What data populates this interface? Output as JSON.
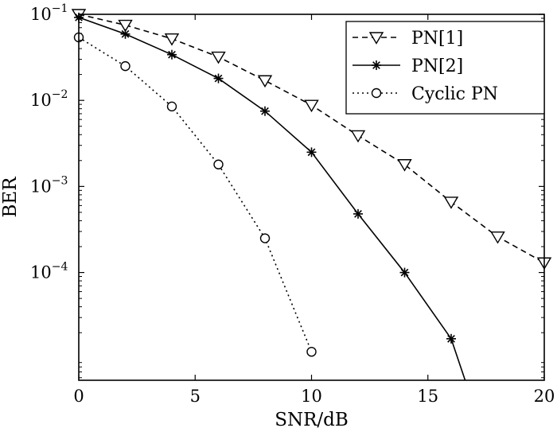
{
  "chart_data": {
    "type": "line",
    "xlabel": "SNR/dB",
    "ylabel": "BER",
    "xlim": [
      0,
      20
    ],
    "ylim": [
      5.6e-06,
      0.1
    ],
    "yscale": "log",
    "grid": false,
    "legend_position": "top-right",
    "x_ticks": [
      0,
      5,
      10,
      15,
      20
    ],
    "x_tick_labels": [
      "0",
      "5",
      "10",
      "15",
      "20"
    ],
    "y_ticks": [
      {
        "value": 0.1,
        "base": "10",
        "exponent": "−1"
      },
      {
        "value": 0.01,
        "base": "10",
        "exponent": "−2"
      },
      {
        "value": 0.001,
        "base": "10",
        "exponent": "−3"
      },
      {
        "value": 0.0001,
        "base": "10",
        "exponent": "−4"
      }
    ],
    "series": [
      {
        "name": "PN[1]",
        "line_style": "dashed",
        "marker": "triangle-down",
        "color": "#000000",
        "x": [
          0,
          2,
          4,
          6,
          8,
          10,
          12,
          14,
          16,
          18,
          20
        ],
        "y": [
          0.1,
          0.075,
          0.052,
          0.032,
          0.017,
          0.0088,
          0.0039,
          0.0018,
          0.00066,
          0.00026,
          0.00013
        ]
      },
      {
        "name": "PN[2]",
        "line_style": "solid",
        "marker": "star",
        "color": "#000000",
        "x": [
          0,
          2,
          4,
          6,
          8,
          10,
          12,
          14,
          16,
          16.6
        ],
        "y": [
          0.092,
          0.059,
          0.034,
          0.018,
          0.0075,
          0.0025,
          0.00048,
          0.0001,
          1.7e-05,
          5.6e-06
        ],
        "marker_count": 9
      },
      {
        "name": "Cyclic PN",
        "line_style": "dotted",
        "marker": "circle",
        "color": "#000000",
        "x": [
          0,
          2,
          4,
          6,
          8,
          10
        ],
        "y": [
          0.054,
          0.025,
          0.0085,
          0.0018,
          0.00025,
          1.2e-05
        ]
      }
    ]
  }
}
